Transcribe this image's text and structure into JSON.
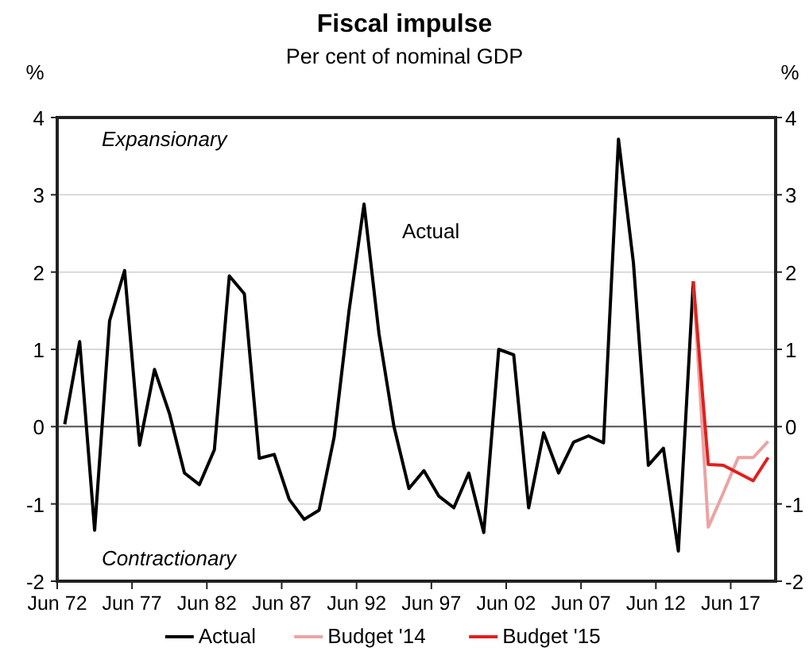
{
  "chart_data": {
    "type": "line",
    "title": "Fiscal impulse",
    "subtitle": "Per cent of nominal GDP",
    "ylabel": "%",
    "y2label": "%",
    "annotations": [
      "Expansionary",
      "Contractionary",
      "Actual"
    ],
    "xlim": [
      "1972-06",
      "2020-06"
    ],
    "xticks": [
      {
        "value": "1972-06",
        "label": "Jun 72"
      },
      {
        "value": "1977-06",
        "label": "Jun 77"
      },
      {
        "value": "1982-06",
        "label": "Jun 82"
      },
      {
        "value": "1987-06",
        "label": "Jun 87"
      },
      {
        "value": "1992-06",
        "label": "Jun 92"
      },
      {
        "value": "1997-06",
        "label": "Jun 97"
      },
      {
        "value": "2002-06",
        "label": "Jun 02"
      },
      {
        "value": "2007-06",
        "label": "Jun 07"
      },
      {
        "value": "2012-06",
        "label": "Jun 12"
      },
      {
        "value": "2017-06",
        "label": "Jun 17"
      }
    ],
    "ylim": [
      -2,
      4
    ],
    "yticks": [
      -2,
      -1,
      0,
      1,
      2,
      3,
      4
    ],
    "y2lim": [
      -2,
      4
    ],
    "y2ticks": [
      -2,
      -1,
      0,
      1,
      2,
      3,
      4
    ],
    "grid": "y",
    "legend": "bottom",
    "line_style": "solid",
    "marker": "none",
    "ref_lines": [
      {
        "axis": "y",
        "value": 0,
        "color": "#555555"
      }
    ],
    "series": [
      {
        "name": "Actual",
        "color": "#000000",
        "x": [
          "1972-12",
          "1973-12",
          "1974-12",
          "1975-12",
          "1976-12",
          "1977-12",
          "1978-12",
          "1979-12",
          "1980-12",
          "1981-12",
          "1982-12",
          "1983-12",
          "1984-12",
          "1985-12",
          "1986-12",
          "1987-12",
          "1988-12",
          "1989-12",
          "1990-12",
          "1991-12",
          "1992-12",
          "1993-12",
          "1994-12",
          "1995-12",
          "1996-12",
          "1997-12",
          "1998-12",
          "1999-12",
          "2000-12",
          "2001-12",
          "2002-12",
          "2003-12",
          "2004-12",
          "2005-12",
          "2006-12",
          "2007-12",
          "2008-12",
          "2009-12",
          "2010-12",
          "2011-12",
          "2012-12",
          "2013-12",
          "2014-12"
        ],
        "values": [
          0.03,
          1.1,
          -1.34,
          1.37,
          2.02,
          -0.24,
          0.74,
          0.17,
          -0.6,
          -0.75,
          -0.3,
          1.95,
          1.72,
          -0.41,
          -0.36,
          -0.94,
          -1.2,
          -1.08,
          -0.14,
          1.5,
          2.88,
          1.2,
          0.0,
          -0.8,
          -0.57,
          -0.9,
          -1.05,
          -0.6,
          -1.37,
          1.0,
          0.93,
          -1.05,
          -0.08,
          -0.6,
          -0.2,
          -0.12,
          -0.21,
          3.72,
          2.12,
          -0.5,
          -0.28,
          -1.61,
          1.88
        ]
      },
      {
        "name": "Budget '14",
        "color": "#eba3a3",
        "x": [
          "2014-12",
          "2015-12",
          "2016-12",
          "2017-12",
          "2018-12",
          "2019-12"
        ],
        "values": [
          1.88,
          -1.3,
          -0.86,
          -0.4,
          -0.4,
          -0.19
        ]
      },
      {
        "name": "Budget '15",
        "color": "#e0201c",
        "x": [
          "2014-12",
          "2015-12",
          "2016-12",
          "2017-12",
          "2018-12",
          "2019-12"
        ],
        "values": [
          1.88,
          -0.49,
          -0.5,
          -0.6,
          -0.7,
          -0.4
        ]
      }
    ]
  }
}
